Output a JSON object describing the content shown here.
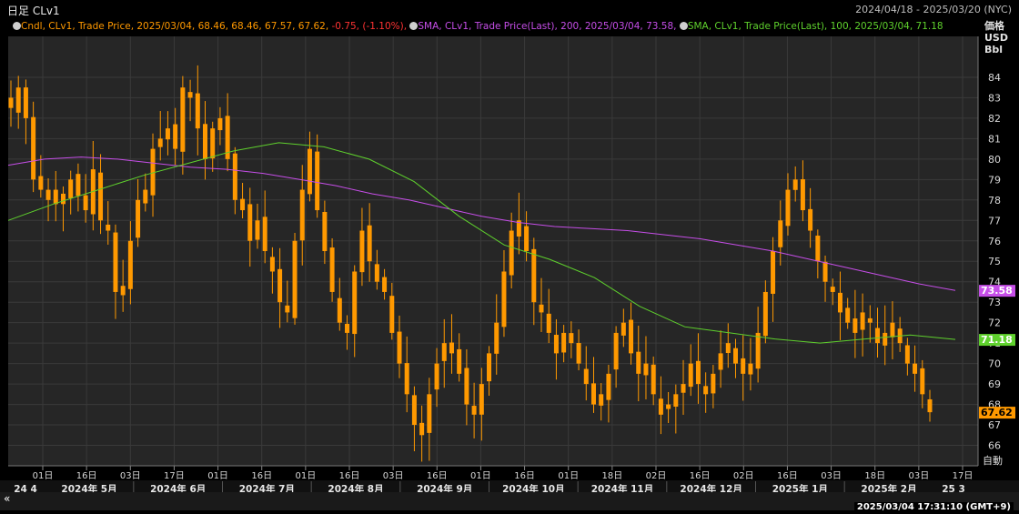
{
  "header": {
    "title": "日足 CLv1",
    "date_range": "2024/04/18 - 2025/03/20 (NYC)"
  },
  "legend": {
    "candles": "Cndl, CLv1, Trade Price, 2025/03/04, 68.46, 68.46, 67.57, 67.62,",
    "candles_change": "-0.75, (-1.10%),",
    "sma200": "SMA, CLv1, Trade Price(Last), 200, 2025/03/04, 73.58,",
    "sma100": "SMA, CLv1, Trade Price(Last), 100, 2025/03/04, 71.18"
  },
  "axis_unit": [
    "価格",
    "USD",
    "Bbl"
  ],
  "auto_label": "自動",
  "timestamp": "2025/03/04 17:31:10 (GMT+9)",
  "colors": {
    "background": "#000000",
    "plot_bg": "#262626",
    "grid": "#3a3a3a",
    "candle": "#ff9900",
    "sma200": "#c64ee8",
    "sma100": "#5fd12d",
    "last_price": "#ff9900",
    "negative": "#ff3333"
  },
  "chart_data": {
    "type": "candlestick",
    "ylim": [
      65,
      86
    ],
    "y_ticks": [
      66,
      67,
      68,
      69,
      70,
      71,
      72,
      73,
      74,
      75,
      76,
      77,
      78,
      79,
      80,
      81,
      82,
      83,
      84
    ],
    "x_ticks": [
      "01日",
      "16日",
      "03日",
      "17日",
      "01日",
      "16日",
      "01日",
      "16日",
      "03日",
      "16日",
      "01日",
      "16日",
      "01日",
      "18日",
      "02日",
      "16日",
      "02日",
      "16日",
      "03日",
      "18日",
      "03日",
      "17日"
    ],
    "x_tick_months": [
      "2024年 5月",
      "2024年 6月",
      "2024年 7月",
      "2024年 8月",
      "2024年 9月",
      "2024年 10月",
      "2024年 11月",
      "2024年 12月",
      "2025年 1月",
      "2025年 2月"
    ],
    "x_start_label": "24 4",
    "x_end_label": "25 3",
    "close_path": [
      82.5,
      83.5,
      82.0,
      79.0,
      78.5,
      78.0,
      78.5,
      77.8,
      79.0,
      78.2,
      77.5,
      79.5,
      77.0,
      76.5,
      73.5,
      73.8,
      76.0,
      78.0,
      78.5,
      80.5,
      81.0,
      81.5,
      80.5,
      83.5,
      83.0,
      81.5,
      80.0,
      81.5,
      82.0,
      80.0,
      78.0,
      77.5,
      76.0,
      77.0,
      75.5,
      74.5,
      73.0,
      72.5,
      76.0,
      78.5,
      80.5,
      77.5,
      75.5,
      73.5,
      72.0,
      71.5,
      74.5,
      76.5,
      75.0,
      74.0,
      73.5,
      71.5,
      70.0,
      68.5,
      67.0,
      66.5,
      68.5,
      70.0,
      71.0,
      70.5,
      69.5,
      68.0,
      67.5,
      69.0,
      70.5,
      72.0,
      74.5,
      76.5,
      77.0,
      75.5,
      73.0,
      72.5,
      71.5,
      70.5,
      71.5,
      71.0,
      70.0,
      69.0,
      68.0,
      68.5,
      69.5,
      71.5,
      72.0,
      70.5,
      69.5,
      70.0,
      68.5,
      67.5,
      68.0,
      68.5,
      69.0,
      70.0,
      69.0,
      68.5,
      69.5,
      70.5,
      71.0,
      70.0,
      69.5,
      70.0,
      71.5,
      73.5,
      75.5,
      77.0,
      78.5,
      79.0,
      77.5,
      76.5,
      75.0,
      74.0,
      73.5,
      72.5,
      72.0,
      71.5,
      72.5,
      72.0,
      71.0,
      71.5,
      72.0,
      71.0,
      70.0,
      69.5,
      68.5,
      67.62
    ],
    "series": [
      {
        "name": "SMA 200",
        "values": [
          79.7,
          80.0,
          80.1,
          80.0,
          79.8,
          79.6,
          79.5,
          79.3,
          79.0,
          78.7,
          78.3,
          78.0,
          77.6,
          77.2,
          76.9,
          76.7,
          76.6,
          76.5,
          76.3,
          76.1,
          75.8,
          75.5,
          75.1,
          74.7,
          74.3,
          73.9,
          73.58
        ]
      },
      {
        "name": "SMA 100",
        "values": [
          77.0,
          77.8,
          78.5,
          79.2,
          79.8,
          80.4,
          80.8,
          80.6,
          80.0,
          78.9,
          77.2,
          75.8,
          75.1,
          74.2,
          72.8,
          71.8,
          71.5,
          71.2,
          71.0,
          71.2,
          71.4,
          71.18
        ]
      }
    ],
    "last_values": {
      "close": 67.62,
      "sma200": 73.58,
      "sma100": 71.18
    }
  }
}
